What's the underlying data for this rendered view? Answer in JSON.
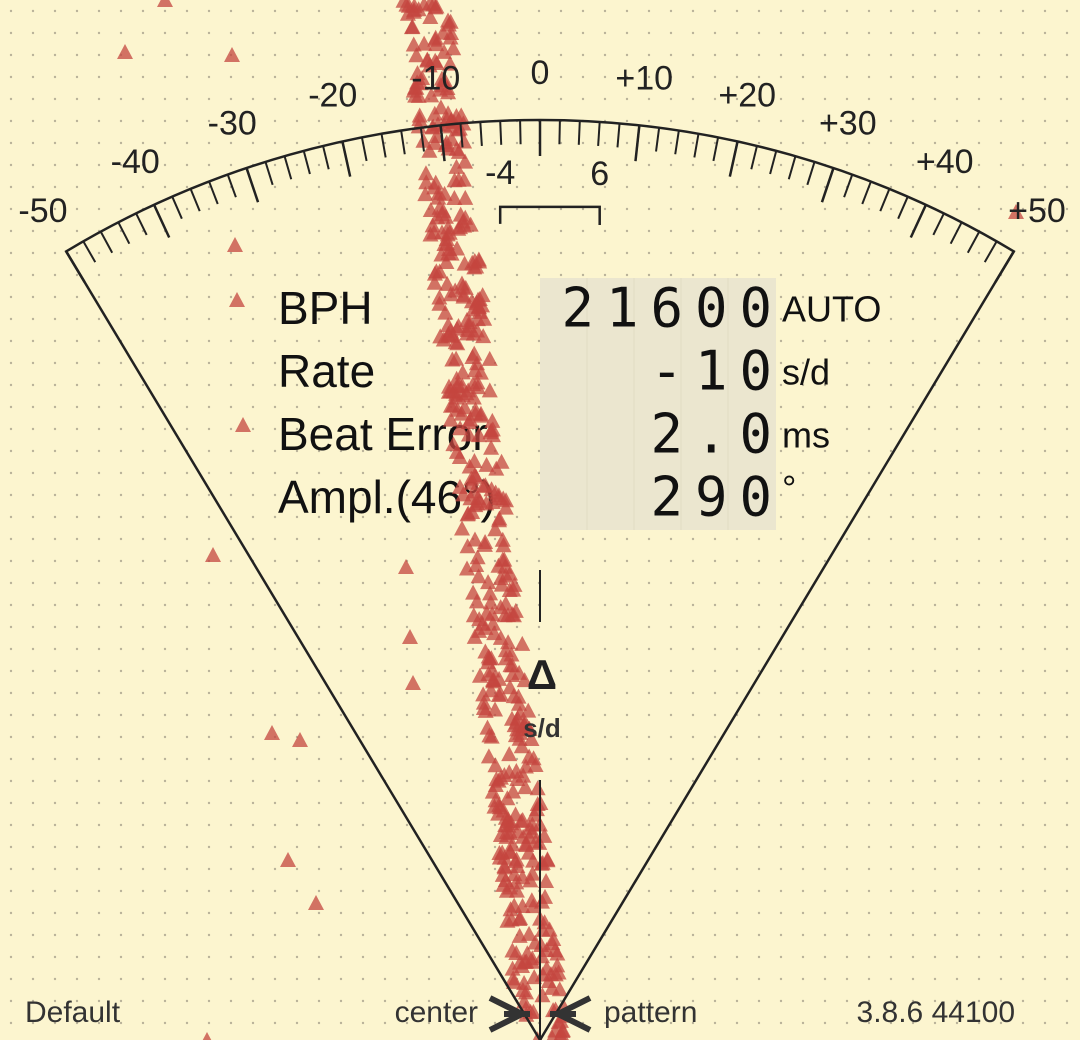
{
  "dial": {
    "range": [
      -50,
      50
    ],
    "ticks": [
      -50,
      -40,
      -30,
      -20,
      -10,
      0,
      {
        "value": 10,
        "label": "+10"
      },
      {
        "value": 20,
        "label": "+20"
      },
      {
        "value": 30,
        "label": "+30"
      },
      {
        "value": 40,
        "label": "+40"
      },
      {
        "value": 50,
        "label": "+50"
      }
    ],
    "bracket": [
      -4,
      6
    ]
  },
  "readout": {
    "rows": [
      {
        "label": "BPH",
        "value": "21600",
        "unit": "AUTO"
      },
      {
        "label": "Rate",
        "value": "-10",
        "unit": "s/d"
      },
      {
        "label": "Beat Error",
        "value": "2.0",
        "unit": "ms"
      },
      {
        "label": "Ampl.(46°)",
        "value": "290",
        "unit": "°"
      }
    ]
  },
  "marker": {
    "symbol": "Δ",
    "unit": "s/d"
  },
  "footer": {
    "left": "Default",
    "center": "center",
    "pattern": "pattern",
    "version": "3.8.6 44100"
  }
}
